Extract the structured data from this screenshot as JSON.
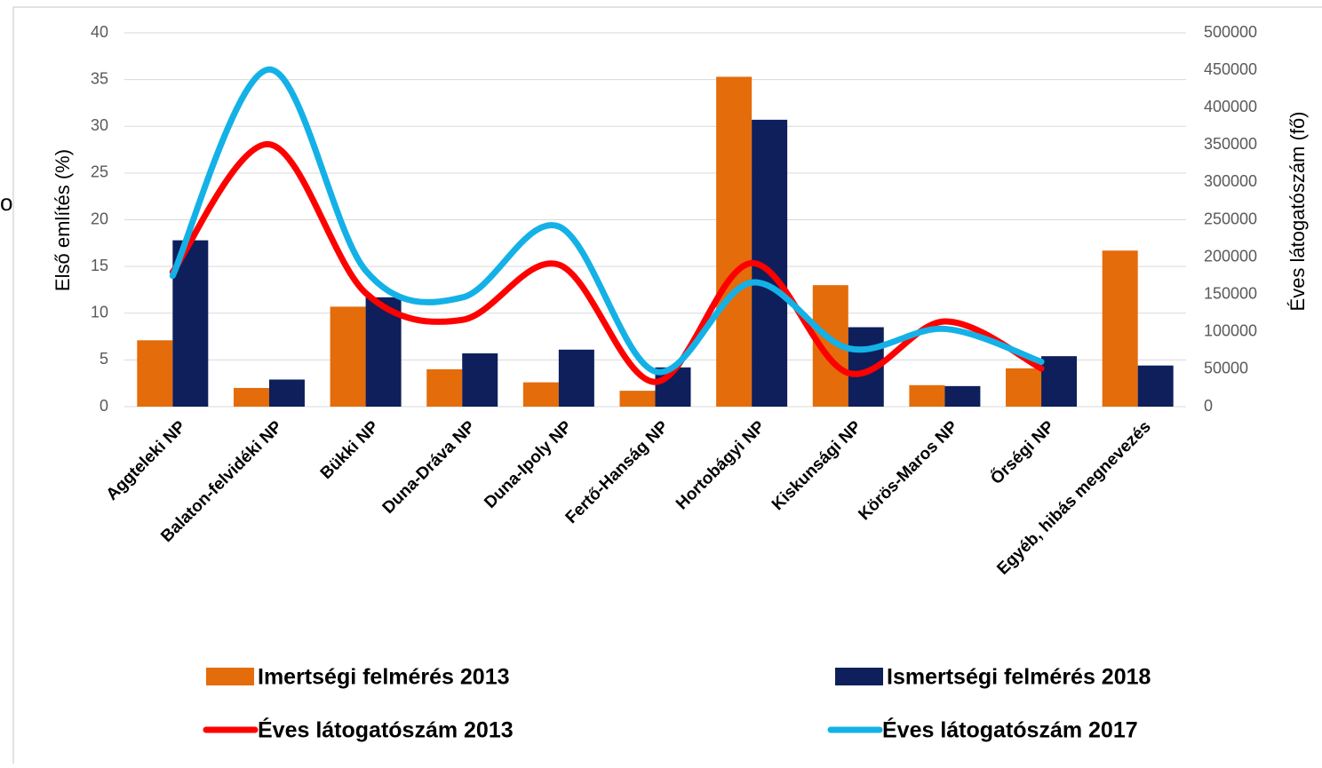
{
  "chart_data": {
    "type": "bar",
    "left_fragment": "o",
    "y_label": "Első említés (%)",
    "y2_label": "Éves látogatószám (fő)",
    "categories": [
      "Aggteleki NP",
      "Balaton-felvidéki NP",
      "Bükki NP",
      "Duna-Dráva NP",
      "Duna-Ipoly NP",
      "Fertő-Hanság NP",
      "Hortobágyi NP",
      "Kiskunsági NP",
      "Körös-Maros NP",
      "Őrségi NP",
      "Egyéb, hibás megnevezés"
    ],
    "series": [
      {
        "name": "Imertségi felmérés 2013",
        "type": "bar",
        "color": "#e46c0a",
        "values": [
          7.1,
          2.0,
          10.7,
          4.0,
          2.6,
          1.7,
          35.3,
          13.0,
          2.3,
          4.1,
          16.7
        ]
      },
      {
        "name": "Ismertségi felmérés 2018",
        "type": "bar",
        "color": "#0e1f5b",
        "values": [
          17.8,
          2.9,
          11.7,
          5.7,
          6.1,
          4.2,
          30.7,
          8.5,
          2.2,
          5.4,
          4.4
        ]
      },
      {
        "name": "Éves látogatószám 2013",
        "type": "line",
        "axis": "y2",
        "color": "#ff0000",
        "values": [
          180000,
          351000,
          152000,
          116000,
          190000,
          33000,
          192000,
          45000,
          114000,
          51000,
          null
        ]
      },
      {
        "name": "Éves látogatószám 2017",
        "type": "line",
        "axis": "y2",
        "color": "#14b1e7",
        "values": [
          175000,
          451000,
          182000,
          146000,
          241000,
          47000,
          166000,
          78000,
          104000,
          60000,
          null
        ]
      }
    ],
    "ylim": [
      0,
      40
    ],
    "yticks": [
      0,
      5,
      10,
      15,
      20,
      25,
      30,
      35,
      40
    ],
    "y2lim": [
      0,
      500000
    ],
    "y2ticks": [
      0,
      50000,
      100000,
      150000,
      200000,
      250000,
      300000,
      350000,
      400000,
      450000,
      500000
    ],
    "grid": true,
    "legend": "bottom"
  }
}
